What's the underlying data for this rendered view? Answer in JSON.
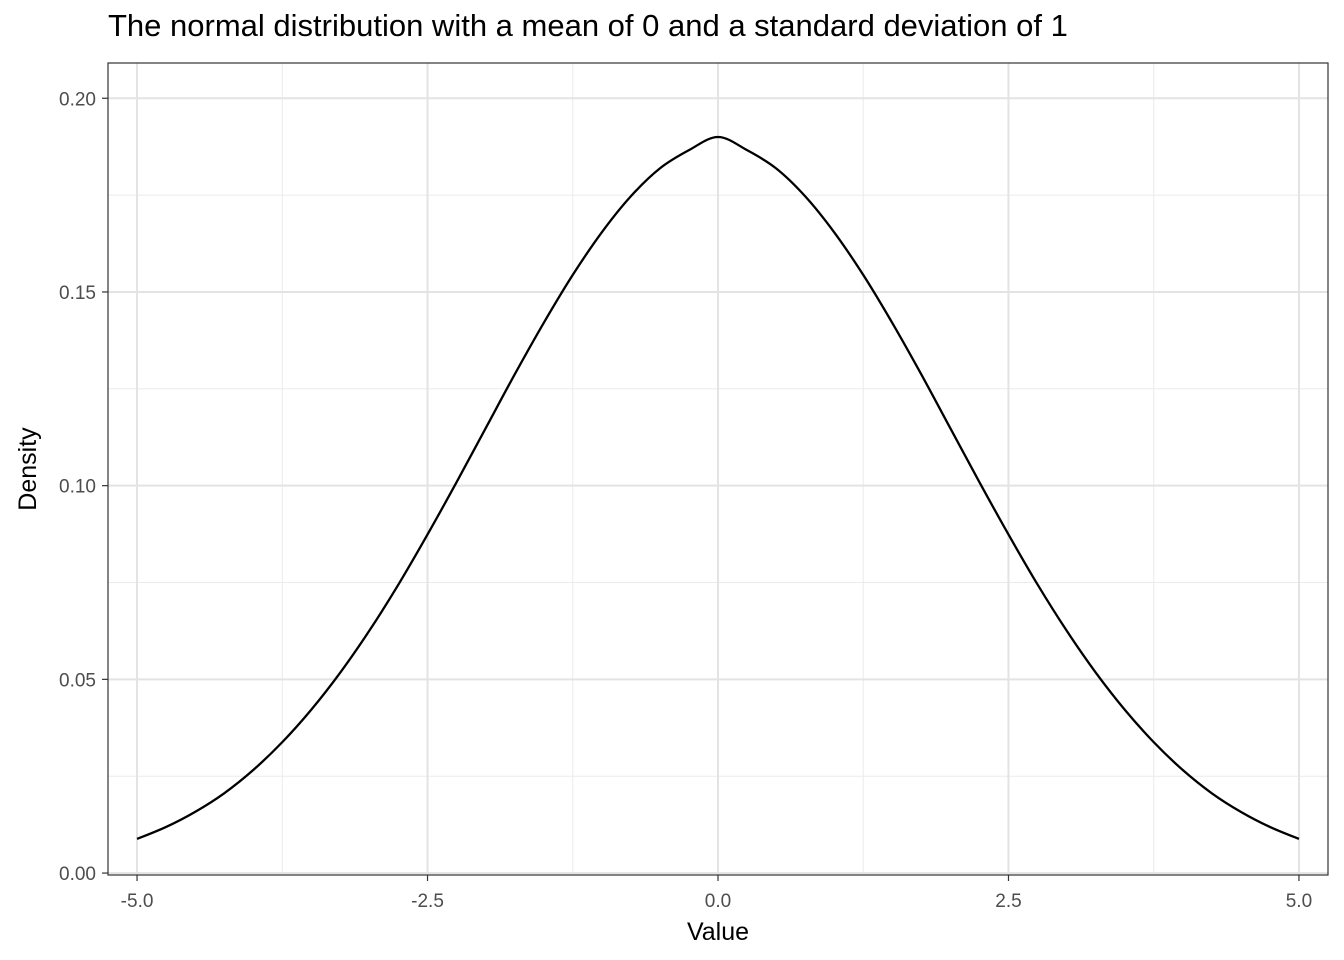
{
  "chart_data": {
    "type": "line",
    "title": "The normal distribution with a mean of 0 and a standard deviation of 1",
    "xlabel": "Value",
    "ylabel": "Density",
    "xlim": [
      -5.25,
      5.25
    ],
    "ylim": [
      -0.0005,
      0.2091
    ],
    "x_ticks": [
      -5.0,
      -2.5,
      0.0,
      2.5,
      5.0
    ],
    "x_tick_labels": [
      "-5.0",
      "-2.5",
      "0.0",
      "2.5",
      "5.0"
    ],
    "y_ticks": [
      0.0,
      0.05,
      0.1,
      0.15,
      0.2
    ],
    "y_tick_labels": [
      "0.00",
      "0.05",
      "0.10",
      "0.15",
      "0.20"
    ],
    "grid": true,
    "legend": "none",
    "line_color": "#000000",
    "series": [
      {
        "x": [
          -5.0,
          -4.75,
          -4.5,
          -4.25,
          -4.0,
          -3.75,
          -3.5,
          -3.25,
          -3.0,
          -2.75,
          -2.5,
          -2.25,
          -2.0,
          -1.75,
          -1.5,
          -1.25,
          -1.0,
          -0.75,
          -0.5,
          -0.25,
          0.0,
          0.25,
          0.5,
          0.75,
          1.0,
          1.25,
          1.5,
          1.75,
          2.0,
          2.25,
          2.5,
          2.75,
          3.0,
          3.25,
          3.5,
          3.75,
          4.0,
          4.25,
          4.5,
          4.75,
          5.0
        ],
        "y": [
          0.0088,
          0.0119,
          0.0158,
          0.0206,
          0.0266,
          0.0338,
          0.0422,
          0.0518,
          0.0626,
          0.0745,
          0.0874,
          0.1009,
          0.1148,
          0.1287,
          0.142,
          0.1544,
          0.1654,
          0.1747,
          0.1819,
          0.1866,
          0.19,
          0.1866,
          0.1819,
          0.1747,
          0.1654,
          0.1544,
          0.142,
          0.1287,
          0.1148,
          0.1009,
          0.0874,
          0.0745,
          0.0626,
          0.0518,
          0.0422,
          0.0338,
          0.0266,
          0.0206,
          0.0158,
          0.0119,
          0.0088
        ]
      }
    ]
  }
}
